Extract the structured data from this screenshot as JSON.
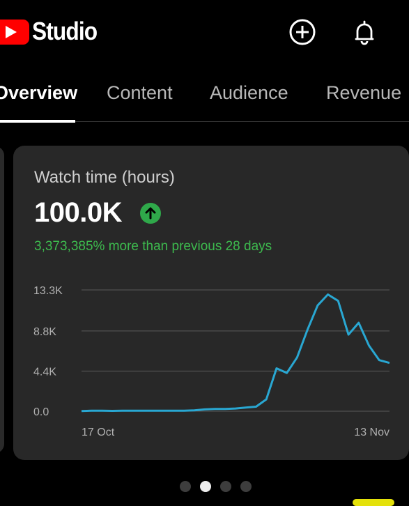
{
  "app": {
    "title": "Studio",
    "brand_color": "#ff0000",
    "icons": [
      "youtube-play-icon",
      "create-plus-icon",
      "bell-icon"
    ]
  },
  "tabs": [
    {
      "label": "Overview",
      "active": true
    },
    {
      "label": "Content",
      "active": false
    },
    {
      "label": "Audience",
      "active": false
    },
    {
      "label": "Revenue",
      "active": false
    }
  ],
  "card": {
    "title": "Watch time (hours)",
    "value": "100.0K",
    "trend_icon": "arrow-up-icon",
    "delta_text": "3,373,385% more than previous 28 days",
    "accent_green": "#3dba4e"
  },
  "chart_data": {
    "type": "line",
    "ytick_labels": [
      "13.3K",
      "8.8K",
      "4.4K",
      "0.0"
    ],
    "ytick_values": [
      13300,
      8800,
      4400,
      0
    ],
    "ylim": [
      0,
      13300
    ],
    "x_start_label": "17 Oct",
    "x_end_label": "13 Nov",
    "grid": true,
    "line_color": "#29a7d2",
    "series": [
      {
        "values": [
          20,
          60,
          60,
          40,
          60,
          60,
          60,
          60,
          60,
          60,
          60,
          100,
          200,
          250,
          250,
          300,
          400,
          500,
          1300,
          4700,
          4200,
          5900,
          8900,
          11600,
          12800,
          12100,
          8400,
          9700,
          7200,
          5600,
          5300
        ]
      }
    ]
  },
  "pager": {
    "count": 4,
    "active_index": 1
  }
}
